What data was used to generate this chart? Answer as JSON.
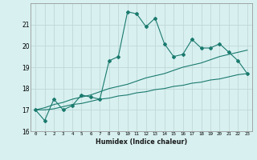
{
  "xlabel": "Humidex (Indice chaleur)",
  "bg_color": "#d8f0f0",
  "grid_color": "#c0d8d8",
  "line_color": "#1a7a6e",
  "x_ticks": [
    0,
    1,
    2,
    3,
    4,
    5,
    6,
    7,
    8,
    9,
    10,
    11,
    12,
    13,
    14,
    15,
    16,
    17,
    18,
    19,
    20,
    21,
    22,
    23
  ],
  "ylim": [
    16,
    22
  ],
  "xlim": [
    -0.5,
    23.5
  ],
  "y_ticks": [
    16,
    17,
    18,
    19,
    20,
    21
  ],
  "series1": [
    17.0,
    16.5,
    17.5,
    17.0,
    17.2,
    17.7,
    17.6,
    17.5,
    19.3,
    19.5,
    21.6,
    21.5,
    20.9,
    21.3,
    20.1,
    19.5,
    19.6,
    20.3,
    19.9,
    19.9,
    20.1,
    19.7,
    19.3,
    18.7
  ],
  "line1_upper": [
    17.0,
    17.1,
    17.25,
    17.35,
    17.5,
    17.6,
    17.7,
    17.85,
    18.0,
    18.1,
    18.2,
    18.35,
    18.5,
    18.6,
    18.7,
    18.85,
    19.0,
    19.1,
    19.2,
    19.35,
    19.5,
    19.6,
    19.7,
    19.8
  ],
  "line1_lower": [
    17.0,
    17.0,
    17.05,
    17.15,
    17.25,
    17.3,
    17.4,
    17.5,
    17.55,
    17.65,
    17.7,
    17.8,
    17.85,
    17.95,
    18.0,
    18.1,
    18.15,
    18.25,
    18.3,
    18.4,
    18.45,
    18.55,
    18.65,
    18.7
  ]
}
